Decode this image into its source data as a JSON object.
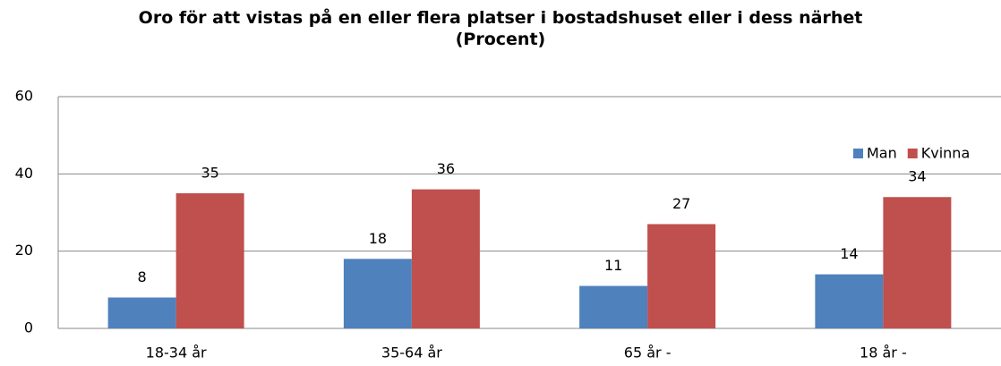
{
  "chart_data": {
    "type": "bar",
    "title": "Oro för att vistas på en eller flera platser i bostadshuset eller i dess närhet",
    "subtitle": "(Procent)",
    "categories": [
      "18-34 år",
      "35-64 år",
      "65 år -",
      "18 år -"
    ],
    "series": [
      {
        "name": "Man",
        "color": "#4f81bd",
        "values": [
          8,
          18,
          11,
          14
        ]
      },
      {
        "name": "Kvinna",
        "color": "#c0504d",
        "values": [
          35,
          36,
          27,
          34
        ]
      }
    ],
    "ylim": [
      0,
      60
    ],
    "yticks": [
      0,
      20,
      40,
      60
    ],
    "grid": true,
    "legend": "top-right"
  }
}
